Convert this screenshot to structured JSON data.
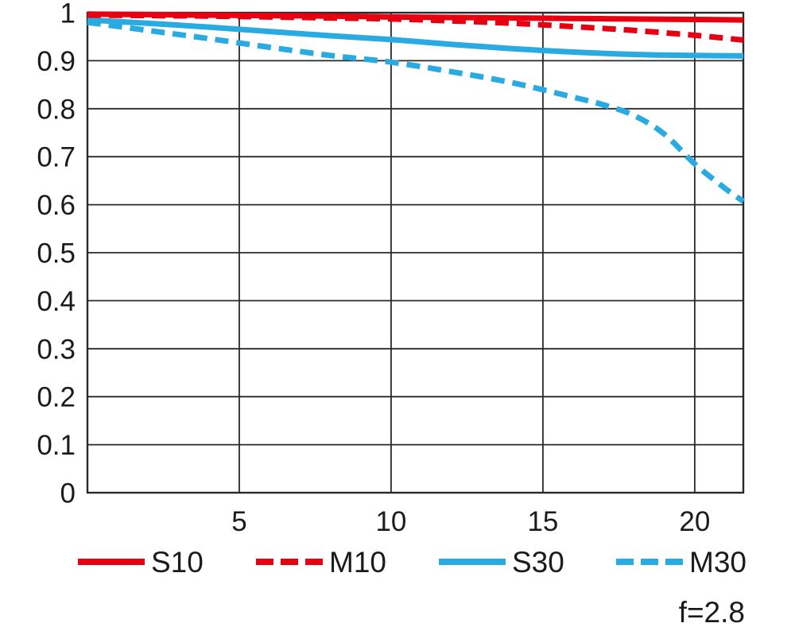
{
  "chart_data": {
    "type": "line",
    "title": "",
    "xlabel": "",
    "ylabel": "",
    "xlim": [
      0,
      21.6
    ],
    "ylim": [
      0,
      1
    ],
    "x_ticks": [
      5,
      10,
      15,
      20
    ],
    "x_tick_labels": [
      "5",
      "10",
      "15",
      "20"
    ],
    "y_ticks": [
      0,
      0.1,
      0.2,
      0.3,
      0.4,
      0.5,
      0.6,
      0.7,
      0.8,
      0.9,
      1
    ],
    "y_tick_labels": [
      "0",
      "0.1",
      "0.2",
      "0.3",
      "0.4",
      "0.5",
      "0.6",
      "0.7",
      "0.8",
      "0.9",
      "1"
    ],
    "grid": true,
    "legend_position": "bottom",
    "annotation": "f=2.8",
    "colors": {
      "red": "#e60012",
      "blue": "#29abe2",
      "grid": "#2b2829",
      "text": "#1c1a1b",
      "background": "#ffffff"
    },
    "series": [
      {
        "name": "M30",
        "color": "#29abe2",
        "style": "dashed",
        "x": [
          0,
          2,
          4,
          6,
          8,
          10,
          12,
          14,
          16,
          17,
          18,
          19,
          20,
          21,
          21.6
        ],
        "y": [
          0.98,
          0.963,
          0.946,
          0.928,
          0.911,
          0.897,
          0.877,
          0.854,
          0.824,
          0.808,
          0.786,
          0.747,
          0.685,
          0.634,
          0.607
        ]
      },
      {
        "name": "S30",
        "color": "#29abe2",
        "style": "solid",
        "x": [
          0,
          2,
          4,
          6,
          8,
          10,
          12,
          14,
          16,
          18,
          20,
          21.6
        ],
        "y": [
          0.985,
          0.978,
          0.97,
          0.961,
          0.952,
          0.944,
          0.934,
          0.925,
          0.918,
          0.913,
          0.911,
          0.91
        ]
      },
      {
        "name": "M10",
        "color": "#e60012",
        "style": "dashed",
        "x": [
          0,
          2,
          4,
          6,
          8,
          10,
          12,
          14,
          16,
          18,
          20,
          21.6
        ],
        "y": [
          0.995,
          0.994,
          0.993,
          0.991,
          0.989,
          0.987,
          0.983,
          0.978,
          0.971,
          0.963,
          0.953,
          0.943
        ]
      },
      {
        "name": "S10",
        "color": "#e60012",
        "style": "solid",
        "x": [
          0,
          2,
          4,
          6,
          8,
          10,
          12,
          14,
          16,
          18,
          20,
          21.6
        ],
        "y": [
          0.997,
          0.996,
          0.995,
          0.994,
          0.993,
          0.991,
          0.99,
          0.989,
          0.988,
          0.987,
          0.986,
          0.985
        ]
      }
    ],
    "legend": [
      {
        "label": "S10",
        "color": "#e60012",
        "style": "solid"
      },
      {
        "label": "M10",
        "color": "#e60012",
        "style": "dashed"
      },
      {
        "label": "S30",
        "color": "#29abe2",
        "style": "solid"
      },
      {
        "label": "M30",
        "color": "#29abe2",
        "style": "dashed"
      }
    ]
  }
}
